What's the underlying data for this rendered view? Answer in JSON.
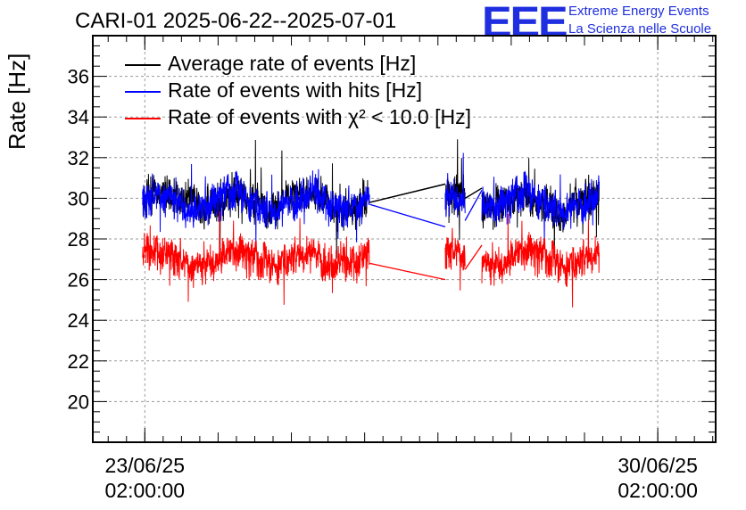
{
  "title": "CARI-01 2025-06-22--2025-07-01",
  "logo": {
    "mark": "EEE",
    "line1": "Extreme Energy Events",
    "line2": "La Scienza nelle Scuole",
    "color": "#1f2fe0"
  },
  "chart_data": {
    "type": "line",
    "ylabel": "Rate [Hz]",
    "ylim": [
      18,
      38
    ],
    "yticks": [
      20,
      22,
      24,
      26,
      28,
      30,
      32,
      34,
      36
    ],
    "xlim_days": [
      -0.71,
      7.79
    ],
    "xticks": [
      {
        "day": 0,
        "line1": "23/06/25",
        "line2": "02:00:00"
      },
      {
        "day": 7,
        "line1": "30/06/25",
        "line2": "02:00:00"
      }
    ],
    "grid": true,
    "segments_days": [
      [
        -0.03,
        3.07
      ],
      [
        4.1,
        4.37
      ],
      [
        4.6,
        6.2
      ]
    ],
    "gap_links": [
      [
        3.07,
        4.1
      ],
      [
        4.37,
        4.6
      ]
    ],
    "series": [
      {
        "name": "Average rate of events [Hz]",
        "color": "#000000",
        "mean": 29.9,
        "noise_sd": 0.55,
        "gap_levels": [
          [
            29.8,
            30.7
          ],
          [
            30.0,
            30.5
          ]
        ]
      },
      {
        "name": "Rate of events with hits [Hz]",
        "color": "#0000ff",
        "mean": 29.9,
        "noise_sd": 0.55,
        "gap_levels": [
          [
            29.7,
            28.6
          ],
          [
            28.9,
            30.4
          ]
        ]
      },
      {
        "name": "Rate of events with χ² < 10.0 [Hz]",
        "color": "#ff0000",
        "mean": 27.1,
        "noise_sd": 0.55,
        "gap_levels": [
          [
            26.8,
            26.0
          ],
          [
            26.5,
            27.7
          ]
        ]
      }
    ]
  }
}
